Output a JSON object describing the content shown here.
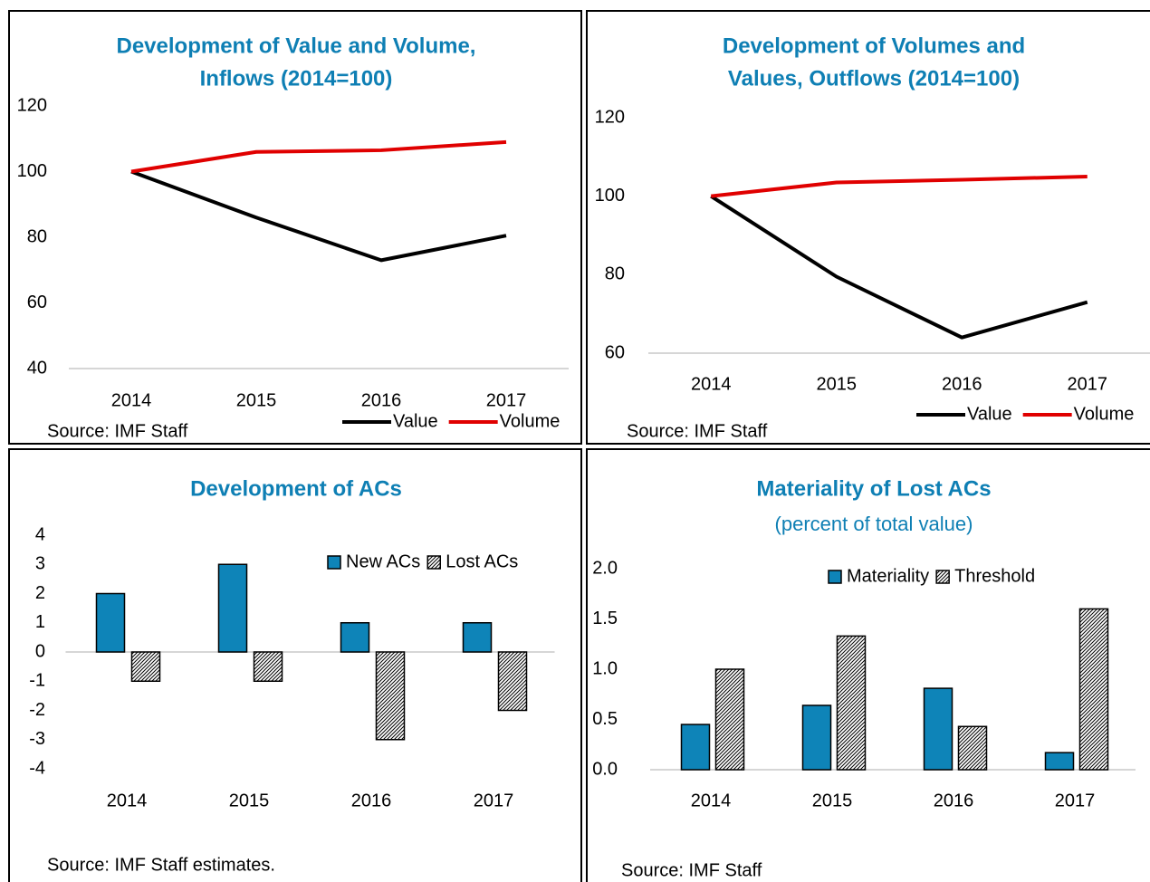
{
  "chart_data": [
    {
      "type": "line",
      "title": [
        "Development of Value and Volume,",
        "Inflows (2014=100)"
      ],
      "categories": [
        "2014",
        "2015",
        "2016",
        "2017"
      ],
      "series": [
        {
          "name": "Value",
          "color": "#000000",
          "values": [
            100,
            86,
            73,
            80.5
          ]
        },
        {
          "name": "Volume",
          "color": "#e00000",
          "values": [
            100,
            106,
            106.5,
            109
          ]
        }
      ],
      "ylim": [
        40,
        120
      ],
      "yticks": [
        40,
        60,
        80,
        100,
        120
      ],
      "grid": false,
      "legend": "bottom",
      "source": "Source: IMF Staff"
    },
    {
      "type": "line",
      "title": [
        "Development of Volumes and",
        "Values, Outflows (2014=100)"
      ],
      "categories": [
        "2014",
        "2015",
        "2016",
        "2017"
      ],
      "series": [
        {
          "name": "Value",
          "color": "#000000",
          "values": [
            100,
            79.5,
            64,
            73
          ]
        },
        {
          "name": "Volume",
          "color": "#e00000",
          "values": [
            100,
            103.5,
            104.2,
            105
          ]
        }
      ],
      "ylim": [
        60,
        120
      ],
      "yticks": [
        60,
        80,
        100,
        120
      ],
      "grid": false,
      "legend": "bottom",
      "source": "Source: IMF Staff"
    },
    {
      "type": "bar",
      "title": [
        "Development of ACs"
      ],
      "categories": [
        "2014",
        "2015",
        "2016",
        "2017"
      ],
      "series": [
        {
          "name": "New ACs",
          "color": "#0e84b8",
          "values": [
            2,
            3,
            1,
            1
          ]
        },
        {
          "name": "Lost ACs",
          "color": "#000000",
          "pattern": "hatch",
          "values": [
            -1,
            -1,
            -3,
            -2
          ]
        }
      ],
      "ylim": [
        -4,
        4
      ],
      "yticks": [
        -4,
        -3,
        -2,
        -1,
        0,
        1,
        2,
        3,
        4
      ],
      "grid": false,
      "legend": "upper right",
      "source": "Source: IMF Staff estimates."
    },
    {
      "type": "bar",
      "title": [
        "Materiality of Lost ACs"
      ],
      "subtitle": "(percent of total value)",
      "categories": [
        "2014",
        "2015",
        "2016",
        "2017"
      ],
      "series": [
        {
          "name": "Materiality",
          "color": "#0e84b8",
          "values": [
            0.45,
            0.64,
            0.81,
            0.17
          ]
        },
        {
          "name": "Threshold",
          "color": "#000000",
          "pattern": "hatch",
          "values": [
            1.0,
            1.33,
            0.43,
            1.6
          ]
        }
      ],
      "ylim": [
        0,
        2
      ],
      "yticks": [
        {
          "value": 0,
          "label": "0.0"
        },
        {
          "value": 0.5,
          "label": "0.5"
        },
        {
          "value": 1,
          "label": "1.0"
        },
        {
          "value": 1.5,
          "label": "1.5"
        },
        {
          "value": 2,
          "label": "2.0"
        }
      ],
      "grid": false,
      "legend": "upper right",
      "source": "Source: IMF Staff"
    }
  ]
}
